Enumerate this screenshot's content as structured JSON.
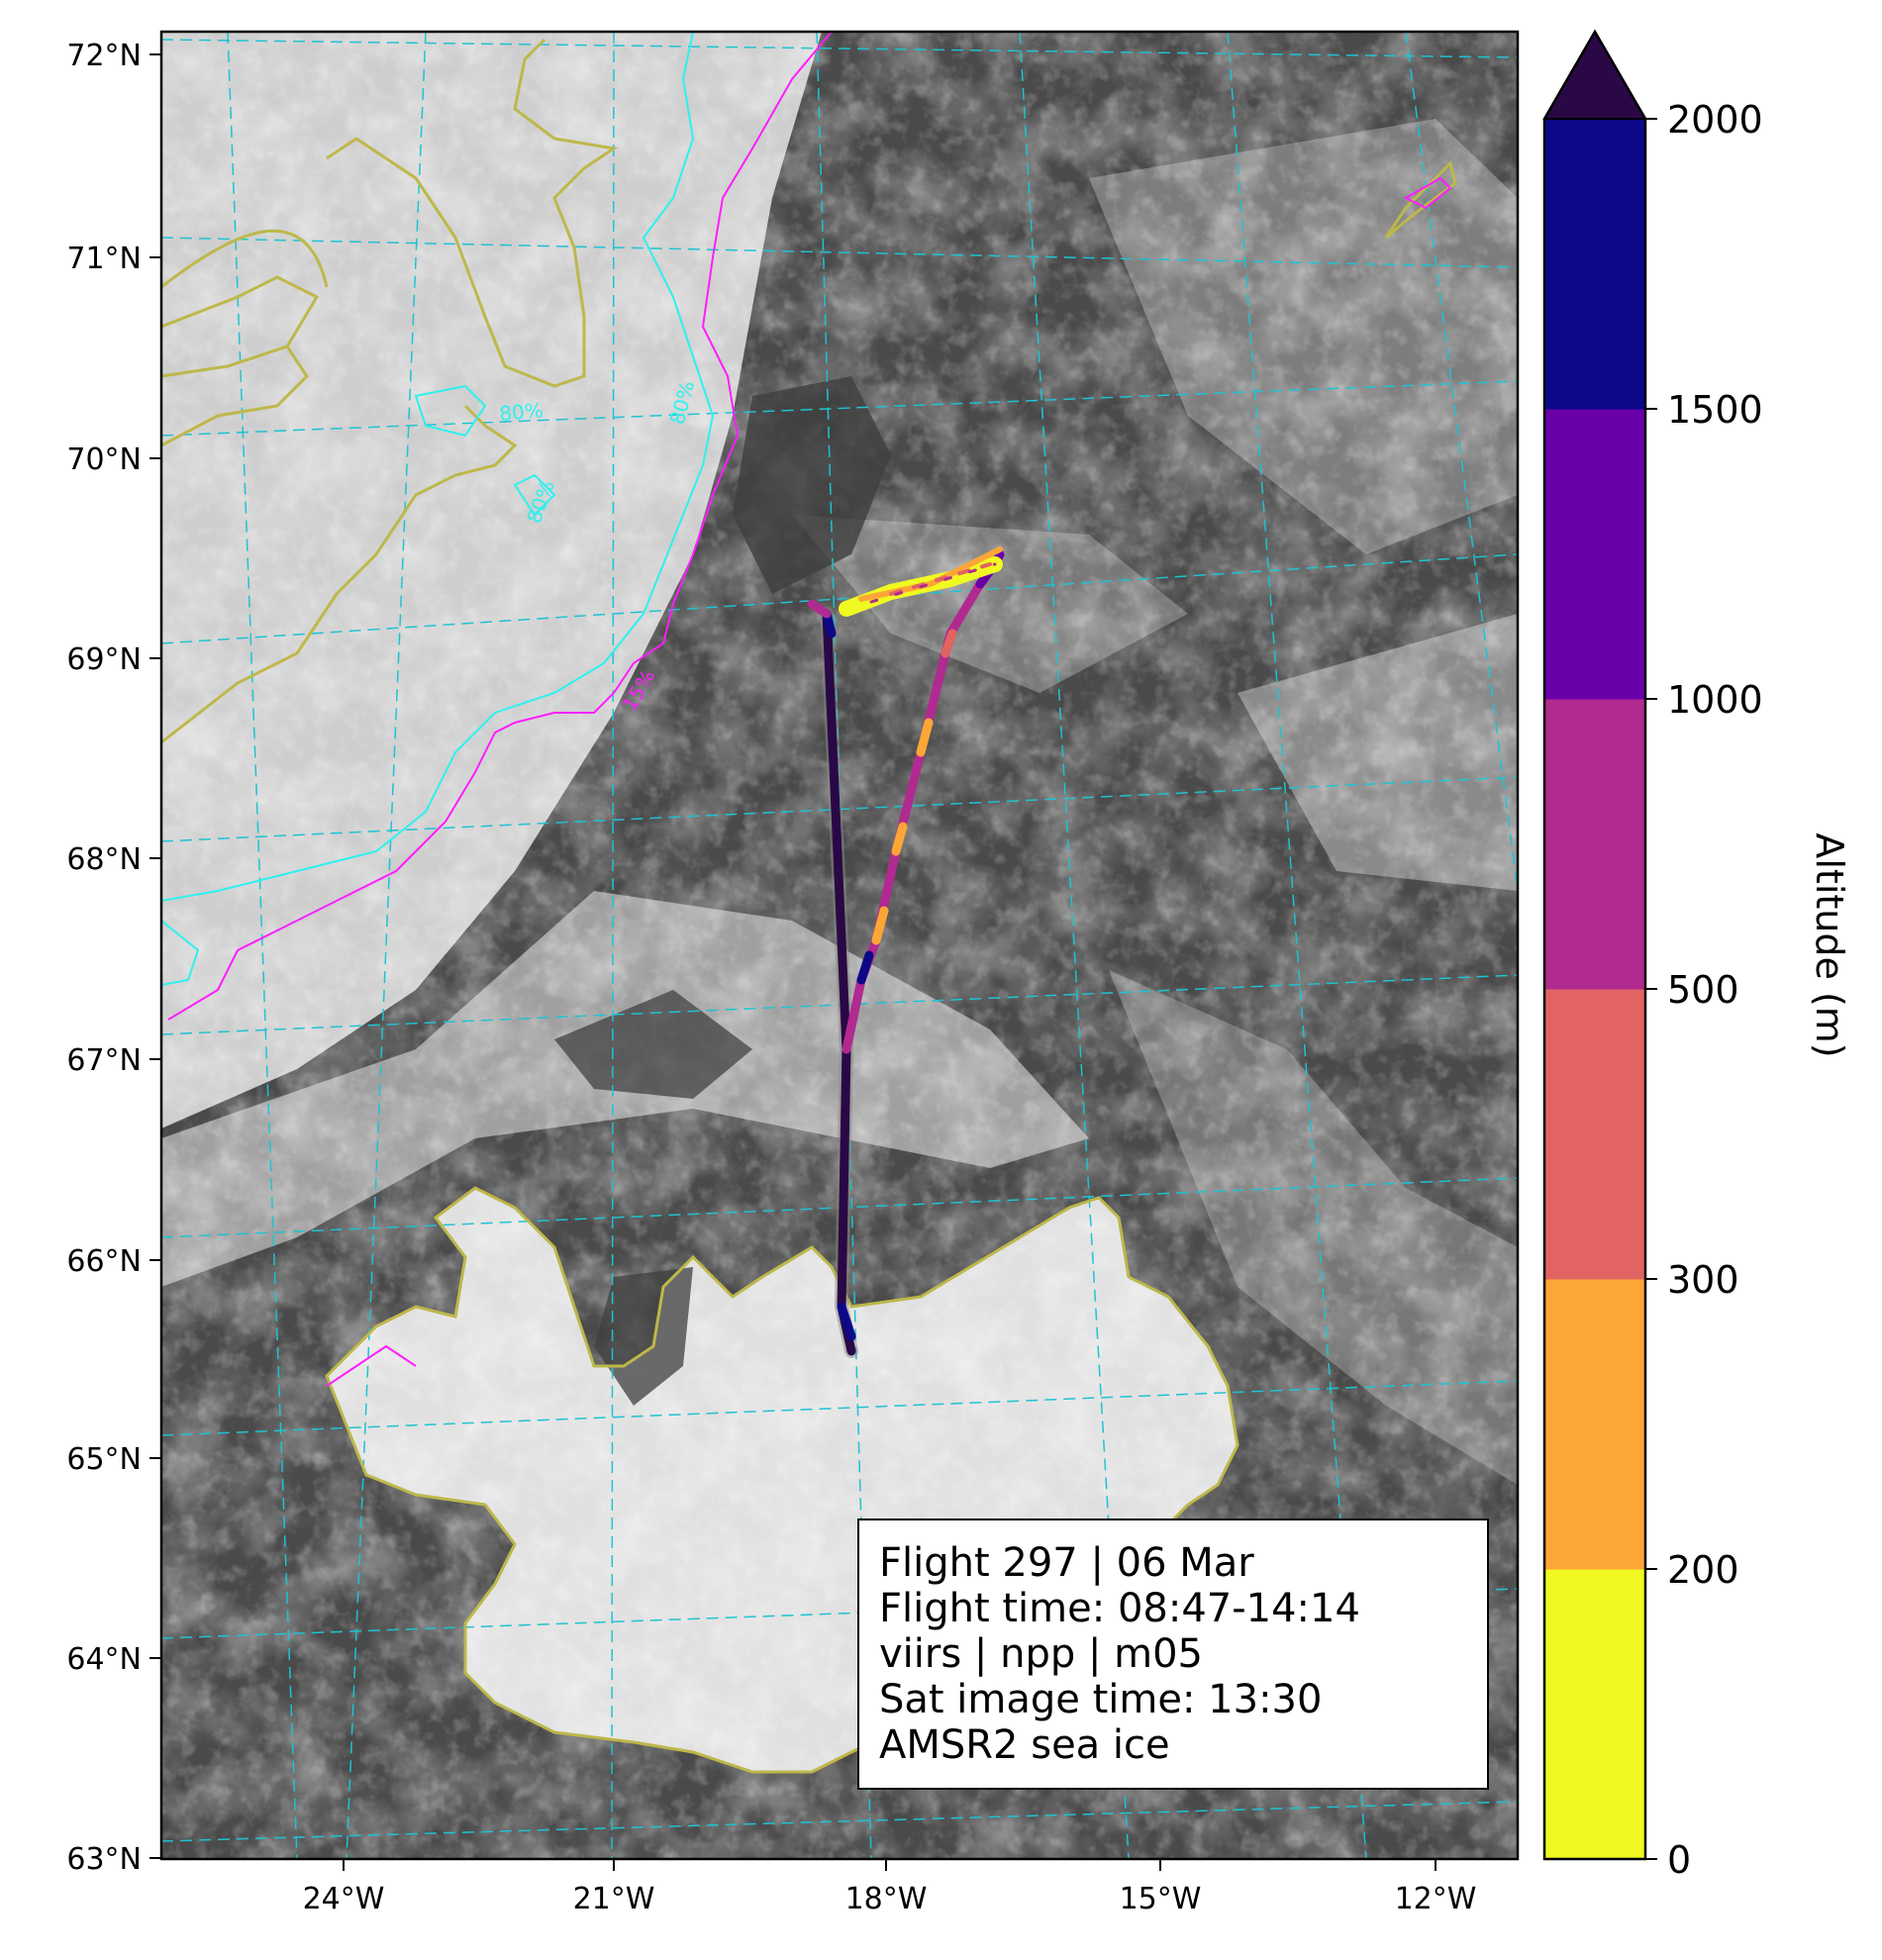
{
  "map": {
    "lat_labels": [
      "72°N",
      "71°N",
      "70°N",
      "69°N",
      "68°N",
      "67°N",
      "66°N",
      "65°N",
      "64°N",
      "63°N"
    ],
    "lon_labels": [
      "24°W",
      "21°W",
      "18°W",
      "15°W",
      "12°W"
    ],
    "contour_labels": {
      "ice_80_a": "80%",
      "ice_80_b": "80%",
      "ice_80_c": "80%",
      "ice_15": "15%"
    },
    "colors": {
      "graticule": "#1fc3d2",
      "coastline": "#bdb84a",
      "ice_80_contour": "#2ff0ef",
      "ice_15_contour": "#ff1dff",
      "frame": "#000000"
    }
  },
  "colorbar": {
    "label": "Altitude (m)",
    "tick_labels": [
      "0",
      "200",
      "300",
      "500",
      "1000",
      "1500",
      "2000"
    ],
    "levels": [
      0,
      200,
      300,
      500,
      1000,
      1500,
      2000
    ],
    "colors": [
      "#f0f921",
      "#fca636",
      "#e16462",
      "#b12a90",
      "#6a00a8",
      "#0d0887"
    ],
    "extend_color": "#2a0845",
    "extend": "max"
  },
  "info_box": {
    "line1": "Flight 297 | 06 Mar",
    "line2": "Flight time: 08:47-14:14",
    "line3": "viirs | npp | m05",
    "line4": "Sat image time: 13:30",
    "line5": "AMSR2 sea ice"
  },
  "flight_track": {
    "description_colors": "altitude-coded segments using colorbar colors"
  }
}
